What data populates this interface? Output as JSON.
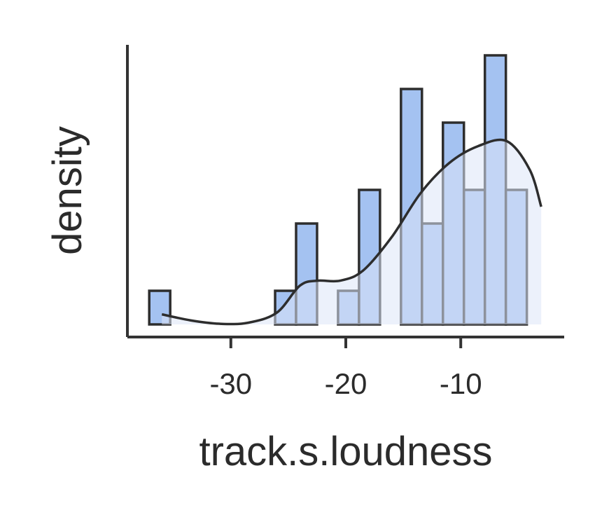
{
  "chart_data": {
    "type": "bar",
    "subtype": "histogram-with-kde",
    "xlabel": "track.s.loudness",
    "ylabel": "density",
    "xlim": [
      -39,
      -1
    ],
    "ylim": [
      0,
      8.4
    ],
    "bin_edges": [
      -37.1,
      -35.275,
      -33.45,
      -31.625,
      -29.8,
      -27.975,
      -26.15,
      -24.325,
      -22.5,
      -20.675,
      -18.85,
      -17.025,
      -15.2,
      -13.375,
      -11.55,
      -9.725,
      -7.9,
      -6.075,
      -4.25,
      -2.425
    ],
    "counts": [
      1,
      0,
      0,
      0,
      0,
      0,
      1,
      3,
      0,
      1,
      4,
      0,
      7,
      3,
      6,
      4,
      8,
      4,
      0
    ],
    "kde": {
      "x": [
        -36,
        -33.5,
        -31,
        -28.5,
        -26,
        -24,
        -22.5,
        -20.5,
        -18.5,
        -16,
        -13.5,
        -11,
        -8.5,
        -6,
        -4,
        -3
      ],
      "y": [
        0.3,
        0.12,
        0.02,
        0.05,
        0.35,
        1.15,
        1.3,
        1.3,
        1.6,
        2.6,
        3.9,
        4.8,
        5.3,
        5.45,
        4.6,
        3.5
      ]
    },
    "xticks": [
      -30,
      -20,
      -10
    ],
    "xtick_labels": [
      "-30",
      "-20",
      "-10"
    ],
    "colors": {
      "bar_fill": "#a4c2f1",
      "kde_fill": "#dce6f8",
      "line": "#2d2d2d",
      "axis": "#333333"
    },
    "grid": false
  }
}
